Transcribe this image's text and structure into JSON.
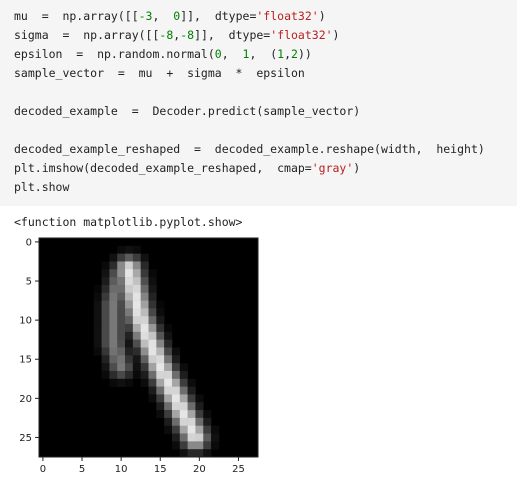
{
  "cell": {
    "lines": [
      [
        {
          "t": "mu  =  np.array([["
        },
        {
          "t": "-3",
          "c": "n"
        },
        {
          "t": ",  "
        },
        {
          "t": "0",
          "c": "n"
        },
        {
          "t": "]],  dtype="
        },
        {
          "t": "'float32'",
          "c": "s"
        },
        {
          "t": ")"
        }
      ],
      [
        {
          "t": "sigma  =  np.array([["
        },
        {
          "t": "-8",
          "c": "n"
        },
        {
          "t": ","
        },
        {
          "t": "-8",
          "c": "n"
        },
        {
          "t": "]],  dtype="
        },
        {
          "t": "'float32'",
          "c": "s"
        },
        {
          "t": ")"
        }
      ],
      [
        {
          "t": "epsilon  =  np.random.normal("
        },
        {
          "t": "0",
          "c": "n"
        },
        {
          "t": ",  "
        },
        {
          "t": "1",
          "c": "n"
        },
        {
          "t": ",  ("
        },
        {
          "t": "1",
          "c": "n"
        },
        {
          "t": ","
        },
        {
          "t": "2",
          "c": "n"
        },
        {
          "t": "))"
        }
      ],
      [
        {
          "t": "sample_vector  =  mu  +  sigma  *  epsilon"
        }
      ],
      [
        {
          "t": ""
        }
      ],
      [
        {
          "t": "decoded_example  =  Decoder.predict(sample_vector)"
        }
      ],
      [
        {
          "t": ""
        }
      ],
      [
        {
          "t": "decoded_example_reshaped  =  decoded_example.reshape(width,  height)"
        }
      ],
      [
        {
          "t": "plt.imshow(decoded_example_reshaped,  cmap="
        },
        {
          "t": "'gray'",
          "c": "s"
        },
        {
          "t": ")"
        }
      ],
      [
        {
          "t": "plt.show"
        }
      ]
    ]
  },
  "output": {
    "text": "<function matplotlib.pyplot.show>"
  },
  "plot": {
    "cmap": "gray",
    "x_ticks": [
      0,
      5,
      10,
      15,
      20,
      25
    ],
    "y_ticks": [
      0,
      5,
      10,
      15,
      20,
      25
    ],
    "size": 28,
    "strokes": [
      {
        "points": [
          [
            3.5,
            11
          ],
          [
            10,
            12.5
          ],
          [
            16,
            15
          ],
          [
            23,
            18.5
          ],
          [
            25,
            19.5
          ]
        ],
        "intensity": 230,
        "width": 1.1
      },
      {
        "points": [
          [
            4,
            10
          ],
          [
            8,
            9
          ],
          [
            13,
            9
          ],
          [
            16,
            10
          ]
        ],
        "intensity": 120,
        "width": 1.0
      }
    ]
  }
}
